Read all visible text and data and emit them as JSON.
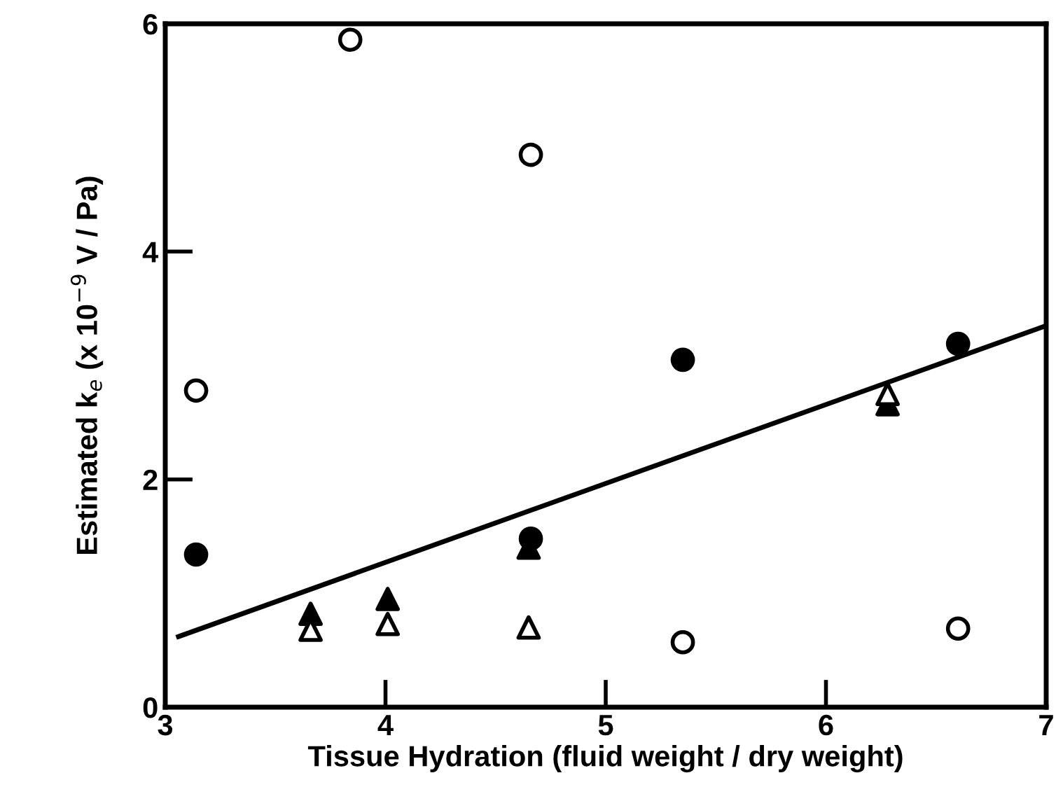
{
  "chart_data": {
    "type": "scatter",
    "xlabel": "Tissue Hydration (fluid weight / dry weight)",
    "ylabel": "Estimated k$_{e}$ (x 10$^{−9}$ V / Pa)",
    "xlim": [
      3,
      7
    ],
    "ylim": [
      0,
      6
    ],
    "xticks": [
      3,
      4,
      5,
      6,
      7
    ],
    "yticks": [
      0,
      2,
      4,
      6
    ],
    "grid": false,
    "legend": false,
    "series": [
      {
        "color": "#ffffff",
        "marker": "circle",
        "x": [
          3.14,
          3.84,
          4.66,
          5.35,
          6.6
        ],
        "values": [
          2.78,
          5.86,
          4.85,
          0.57,
          0.69
        ]
      },
      {
        "color": "#000000",
        "marker": "circle",
        "x": [
          3.14,
          4.66,
          5.35,
          6.6
        ],
        "values": [
          1.34,
          1.48,
          3.05,
          3.19
        ]
      },
      {
        "color": "#000000",
        "marker": "triangle",
        "x": [
          3.66,
          4.01,
          4.65,
          6.28
        ],
        "values": [
          0.82,
          0.95,
          1.4,
          2.66
        ]
      },
      {
        "color": "#ffffff",
        "marker": "triangle",
        "x": [
          3.66,
          4.01,
          4.65,
          6.28
        ],
        "values": [
          0.68,
          0.73,
          0.7,
          2.75
        ]
      },
      {
        "type": "line",
        "color": "#000000",
        "line_style": "solid",
        "marker": "none",
        "x": [
          3.06,
          7
        ],
        "values": [
          0.62,
          3.35
        ]
      }
    ]
  }
}
